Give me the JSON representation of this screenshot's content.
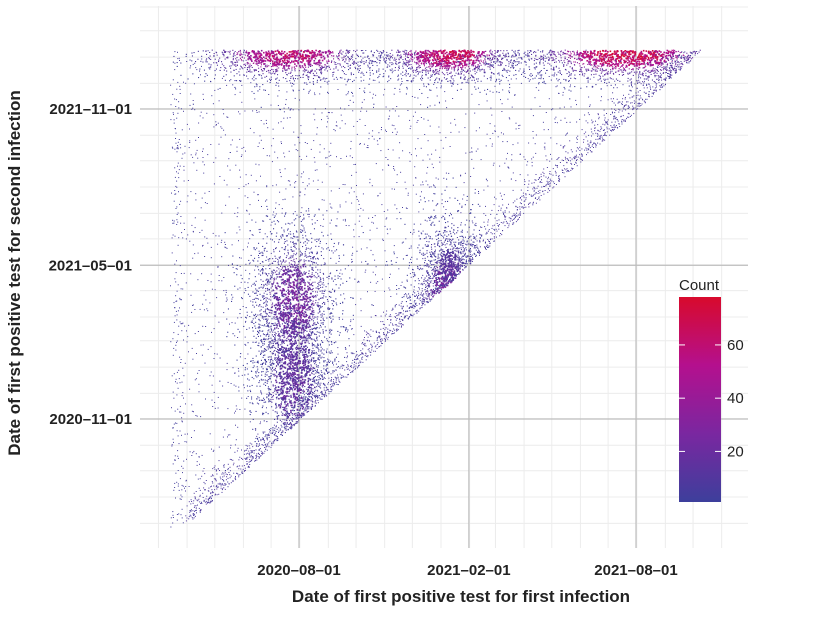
{
  "chart_data": {
    "type": "heatmap",
    "title": "",
    "xlabel": "Date of first positive test for first infection",
    "ylabel": "Date of first positive test for second infection",
    "x_ticks": [
      {
        "label": "2020–08–01",
        "value": "2020-08-01"
      },
      {
        "label": "2021–02–01",
        "value": "2021-02-01"
      },
      {
        "label": "2021–08–01",
        "value": "2021-08-01"
      }
    ],
    "y_ticks": [
      {
        "label": "2020–11–01",
        "value": "2020-11-01"
      },
      {
        "label": "2021–05–01",
        "value": "2021-05-01"
      },
      {
        "label": "2021–11–01",
        "value": "2021-11-01"
      }
    ],
    "xlim": [
      "2020-03-01",
      "2021-12-31"
    ],
    "ylim": [
      "2020-06-01",
      "2022-01-31"
    ],
    "grid": true,
    "constraint": "second infection date >= first infection date + 90 days",
    "clusters": [
      {
        "x": "2020-07-25",
        "y": "2020-12-15",
        "intensity": 22
      },
      {
        "x": "2020-07-25",
        "y": "2021-03-20",
        "intensity": 28
      },
      {
        "x": "2020-07-25",
        "y": "2021-01-15",
        "intensity": 16
      },
      {
        "x": "2021-01-10",
        "y": "2021-03-20",
        "intensity": 32
      },
      {
        "x": "2021-01-10",
        "y": "2021-05-01",
        "intensity": 14
      },
      {
        "x": "2020-07-20",
        "y": "2022-01-05",
        "intensity": 60
      },
      {
        "x": "2021-01-10",
        "y": "2022-01-05",
        "intensity": 66
      },
      {
        "x": "2021-07-20",
        "y": "2022-01-05",
        "intensity": 70
      }
    ],
    "legend": {
      "title": "Count",
      "position": "right",
      "min": 1,
      "max": 78,
      "ticks": [
        20,
        40,
        60
      ],
      "colors": [
        "#3d3f9c",
        "#7a27a0",
        "#b4108e",
        "#d80a2c"
      ]
    }
  }
}
